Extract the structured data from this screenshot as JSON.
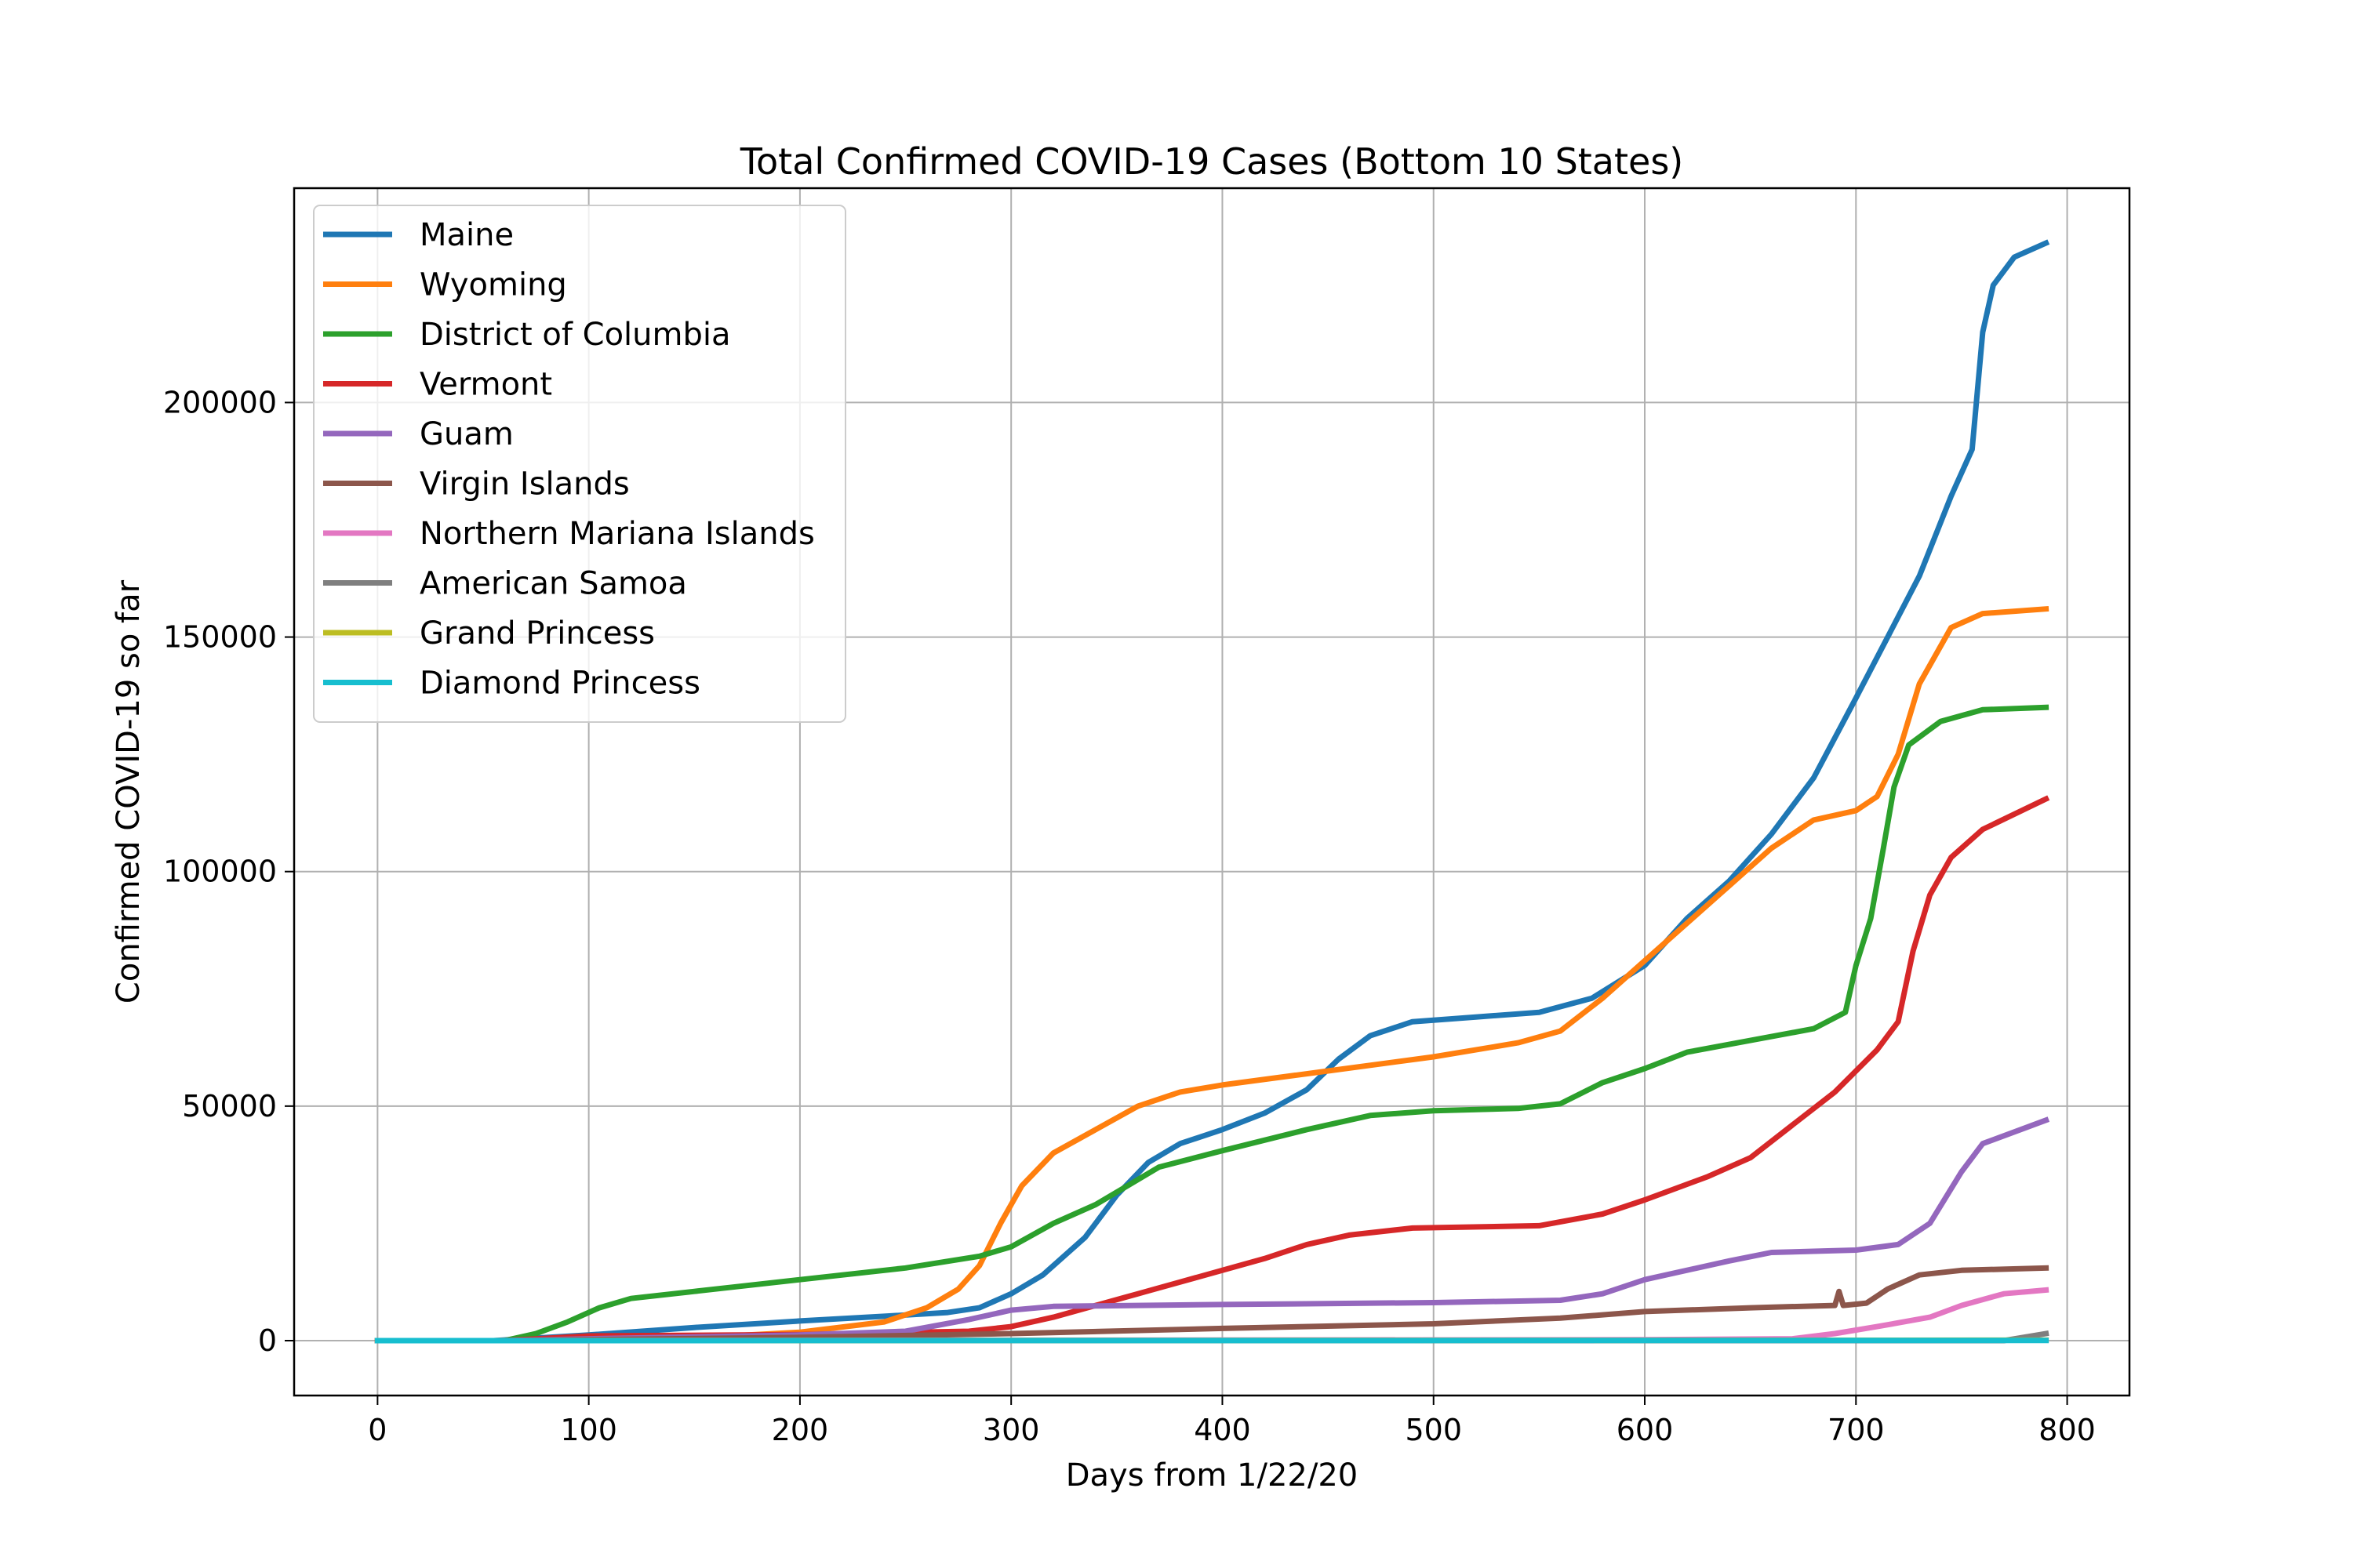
{
  "chart_data": {
    "type": "line",
    "title": "Total Confirmed COVID-19 Cases (Bottom 10 States)",
    "xlabel": "Days from 1/22/20",
    "ylabel": "Confirmed COVID-19 so far",
    "xlim": [
      -39.5,
      829.5
    ],
    "ylim": [
      -11700,
      245700
    ],
    "xticks": [
      0,
      100,
      200,
      300,
      400,
      500,
      600,
      700,
      800
    ],
    "xtick_labels": [
      "0",
      "100",
      "200",
      "300",
      "400",
      "500",
      "600",
      "700",
      "800"
    ],
    "yticks": [
      0,
      50000,
      100000,
      150000,
      200000
    ],
    "ytick_labels": [
      "0",
      "50000",
      "100000",
      "150000",
      "200000"
    ],
    "grid": true,
    "legend_position": "upper-left",
    "series": [
      {
        "name": "Maine",
        "color": "#1f77b4",
        "points": [
          [
            0,
            0
          ],
          [
            55,
            0
          ],
          [
            100,
            1200
          ],
          [
            150,
            2800
          ],
          [
            200,
            4200
          ],
          [
            240,
            5200
          ],
          [
            270,
            6000
          ],
          [
            285,
            7000
          ],
          [
            300,
            10000
          ],
          [
            315,
            14000
          ],
          [
            335,
            22000
          ],
          [
            350,
            31000
          ],
          [
            365,
            38000
          ],
          [
            380,
            42000
          ],
          [
            400,
            45000
          ],
          [
            420,
            48500
          ],
          [
            440,
            53500
          ],
          [
            455,
            60000
          ],
          [
            470,
            65000
          ],
          [
            490,
            68000
          ],
          [
            520,
            69000
          ],
          [
            550,
            70000
          ],
          [
            575,
            73000
          ],
          [
            600,
            80000
          ],
          [
            620,
            90000
          ],
          [
            640,
            98000
          ],
          [
            660,
            108000
          ],
          [
            680,
            120000
          ],
          [
            700,
            137000
          ],
          [
            715,
            150000
          ],
          [
            730,
            163000
          ],
          [
            745,
            180000
          ],
          [
            755,
            190000
          ],
          [
            760,
            215000
          ],
          [
            765,
            225000
          ],
          [
            775,
            231000
          ],
          [
            790,
            234000
          ]
        ]
      },
      {
        "name": "Wyoming",
        "color": "#ff7f0e",
        "points": [
          [
            0,
            0
          ],
          [
            55,
            0
          ],
          [
            150,
            600
          ],
          [
            200,
            1800
          ],
          [
            240,
            4000
          ],
          [
            260,
            7000
          ],
          [
            275,
            11000
          ],
          [
            285,
            16000
          ],
          [
            295,
            25000
          ],
          [
            305,
            33000
          ],
          [
            320,
            40000
          ],
          [
            340,
            45000
          ],
          [
            360,
            50000
          ],
          [
            380,
            53000
          ],
          [
            400,
            54500
          ],
          [
            450,
            57500
          ],
          [
            500,
            60500
          ],
          [
            540,
            63500
          ],
          [
            560,
            66000
          ],
          [
            580,
            73000
          ],
          [
            600,
            81000
          ],
          [
            620,
            89000
          ],
          [
            640,
            97000
          ],
          [
            660,
            105000
          ],
          [
            680,
            111000
          ],
          [
            700,
            113000
          ],
          [
            710,
            116000
          ],
          [
            720,
            125000
          ],
          [
            730,
            140000
          ],
          [
            745,
            152000
          ],
          [
            760,
            155000
          ],
          [
            790,
            156000
          ]
        ]
      },
      {
        "name": "District of Columbia",
        "color": "#2ca02c",
        "points": [
          [
            0,
            0
          ],
          [
            60,
            0
          ],
          [
            75,
            1500
          ],
          [
            90,
            4000
          ],
          [
            105,
            7000
          ],
          [
            120,
            9000
          ],
          [
            150,
            10500
          ],
          [
            170,
            11500
          ],
          [
            200,
            13000
          ],
          [
            250,
            15500
          ],
          [
            285,
            18000
          ],
          [
            300,
            20000
          ],
          [
            320,
            25000
          ],
          [
            340,
            29000
          ],
          [
            355,
            33000
          ],
          [
            370,
            37000
          ],
          [
            400,
            40500
          ],
          [
            440,
            45000
          ],
          [
            470,
            48000
          ],
          [
            500,
            49000
          ],
          [
            540,
            49500
          ],
          [
            560,
            50500
          ],
          [
            580,
            55000
          ],
          [
            600,
            58000
          ],
          [
            620,
            61500
          ],
          [
            650,
            64000
          ],
          [
            680,
            66500
          ],
          [
            695,
            70000
          ],
          [
            700,
            80000
          ],
          [
            707,
            90000
          ],
          [
            713,
            105000
          ],
          [
            718,
            118000
          ],
          [
            725,
            127000
          ],
          [
            740,
            132000
          ],
          [
            760,
            134500
          ],
          [
            790,
            135000
          ]
        ]
      },
      {
        "name": "Vermont",
        "color": "#d62728",
        "points": [
          [
            0,
            0
          ],
          [
            60,
            0
          ],
          [
            100,
            1000
          ],
          [
            200,
            1300
          ],
          [
            280,
            2000
          ],
          [
            300,
            3000
          ],
          [
            320,
            5000
          ],
          [
            340,
            7500
          ],
          [
            360,
            10000
          ],
          [
            380,
            12500
          ],
          [
            400,
            15000
          ],
          [
            420,
            17500
          ],
          [
            440,
            20500
          ],
          [
            460,
            22500
          ],
          [
            490,
            24000
          ],
          [
            550,
            24500
          ],
          [
            580,
            27000
          ],
          [
            600,
            30000
          ],
          [
            630,
            35000
          ],
          [
            650,
            39000
          ],
          [
            670,
            46000
          ],
          [
            690,
            53000
          ],
          [
            710,
            62000
          ],
          [
            720,
            68000
          ],
          [
            727,
            83000
          ],
          [
            735,
            95000
          ],
          [
            745,
            103000
          ],
          [
            760,
            109000
          ],
          [
            790,
            115500
          ]
        ]
      },
      {
        "name": "Guam",
        "color": "#9467bd",
        "points": [
          [
            0,
            0
          ],
          [
            60,
            0
          ],
          [
            100,
            400
          ],
          [
            200,
            1200
          ],
          [
            250,
            2000
          ],
          [
            280,
            4500
          ],
          [
            300,
            6500
          ],
          [
            320,
            7300
          ],
          [
            400,
            7700
          ],
          [
            500,
            8100
          ],
          [
            560,
            8600
          ],
          [
            580,
            10000
          ],
          [
            600,
            13000
          ],
          [
            640,
            17000
          ],
          [
            660,
            18800
          ],
          [
            700,
            19300
          ],
          [
            720,
            20500
          ],
          [
            735,
            25000
          ],
          [
            750,
            36000
          ],
          [
            760,
            42000
          ],
          [
            790,
            47000
          ]
        ]
      },
      {
        "name": "Virgin Islands",
        "color": "#8c564b",
        "points": [
          [
            0,
            0
          ],
          [
            60,
            0
          ],
          [
            200,
            700
          ],
          [
            300,
            1500
          ],
          [
            400,
            2600
          ],
          [
            500,
            3600
          ],
          [
            560,
            4800
          ],
          [
            600,
            6200
          ],
          [
            650,
            7000
          ],
          [
            690,
            7500
          ],
          [
            692,
            10500
          ],
          [
            694,
            7500
          ],
          [
            705,
            8000
          ],
          [
            715,
            11000
          ],
          [
            730,
            14000
          ],
          [
            750,
            15000
          ],
          [
            790,
            15500
          ]
        ]
      },
      {
        "name": "Northern Mariana Islands",
        "color": "#e377c2",
        "points": [
          [
            0,
            0
          ],
          [
            60,
            0
          ],
          [
            600,
            200
          ],
          [
            670,
            400
          ],
          [
            690,
            1500
          ],
          [
            710,
            3000
          ],
          [
            735,
            5000
          ],
          [
            750,
            7500
          ],
          [
            770,
            10000
          ],
          [
            790,
            10800
          ]
        ]
      },
      {
        "name": "American Samoa",
        "color": "#7f7f7f",
        "points": [
          [
            0,
            0
          ],
          [
            770,
            0
          ],
          [
            790,
            1500
          ]
        ]
      },
      {
        "name": "Grand Princess",
        "color": "#bcbd22",
        "points": [
          [
            0,
            0
          ],
          [
            790,
            100
          ]
        ]
      },
      {
        "name": "Diamond Princess",
        "color": "#17becf",
        "points": [
          [
            0,
            0
          ],
          [
            790,
            50
          ]
        ]
      }
    ]
  }
}
